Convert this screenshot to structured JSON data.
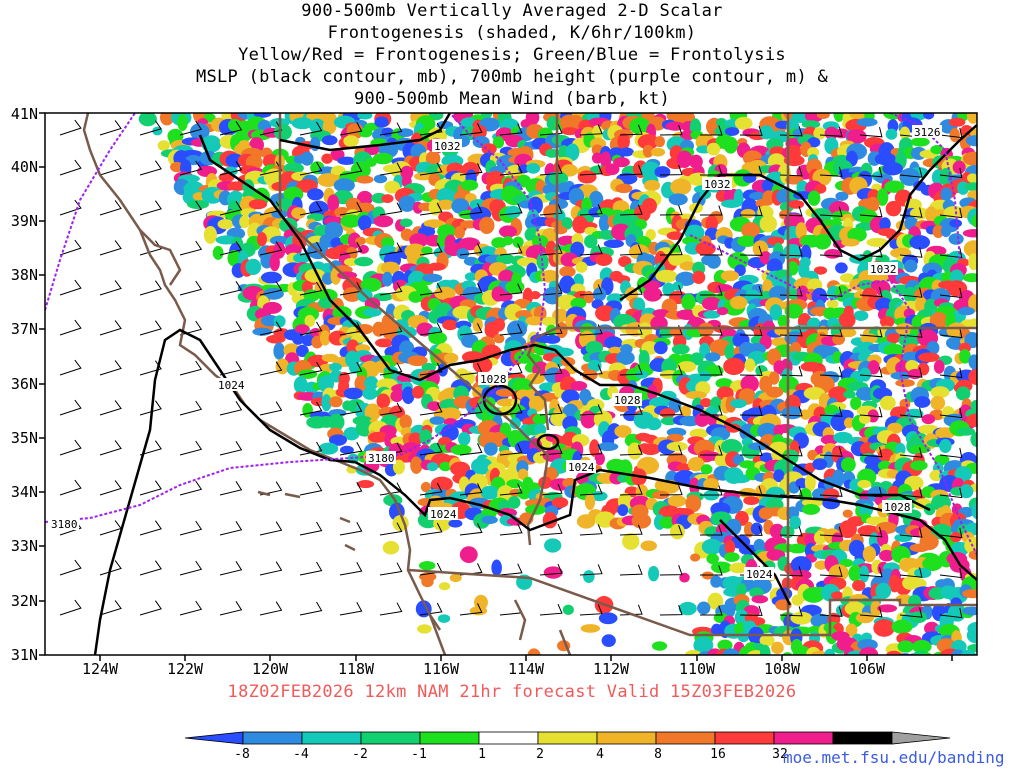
{
  "title_lines": [
    "900-500mb Vertically Averaged 2-D Scalar",
    "Frontogenesis (shaded, K/6hr/100km)",
    "Yellow/Red = Frontogenesis;  Green/Blue = Frontolysis",
    "MSLP (black contour, mb), 700mb height (purple contour, m) &",
    "900-500mb Mean Wind (barb, kt)"
  ],
  "lat_labels": [
    "41N",
    "40N",
    "39N",
    "38N",
    "37N",
    "36N",
    "35N",
    "34N",
    "33N",
    "32N",
    "31N"
  ],
  "lon_labels": [
    "124W",
    "122W",
    "120W",
    "118W",
    "116W",
    "114W",
    "112W",
    "110W",
    "108W",
    "106W"
  ],
  "contour_labels": {
    "mslp": [
      "1032",
      "1032",
      "1032",
      "1024",
      "1028",
      "1028",
      "1024",
      "1024",
      "1028",
      "1024"
    ],
    "height": [
      "3126",
      "3180",
      "3180"
    ]
  },
  "valid_line": "18Z02FEB2026 12km NAM 21hr forecast Valid 15Z03FEB2026",
  "colorbar": {
    "labels": [
      "-8",
      "-4",
      "-2",
      "-1",
      "1",
      "2",
      "4",
      "8",
      "16",
      "32"
    ],
    "colors": [
      "#2a4dff",
      "#2e8be0",
      "#15c9b8",
      "#12d070",
      "#1ee01e",
      "#ffffff",
      "#e6e032",
      "#f0b428",
      "#f07828",
      "#ff3a3a",
      "#f01e8c",
      "#000000",
      "#a0a0a0"
    ]
  },
  "credit": "moe.met.fsu.edu/banding",
  "map": {
    "colors": {
      "mslp": "#000000",
      "height": "#a020f0",
      "borders": "#7a5a4a",
      "frame": "#000000"
    }
  }
}
